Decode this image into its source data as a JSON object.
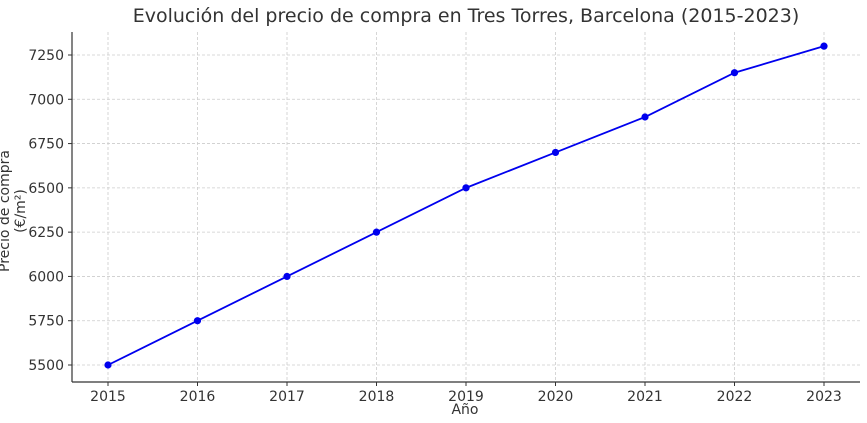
{
  "chart_data": {
    "type": "line",
    "title": "Evolución del precio de compra en Tres Torres, Barcelona (2015-2023)",
    "xlabel": "Año",
    "ylabel": "Precio de compra (€/m²)",
    "x": [
      2015,
      2016,
      2017,
      2018,
      2019,
      2020,
      2021,
      2022,
      2023
    ],
    "series": [
      {
        "name": "Precio de compra",
        "values": [
          5500,
          5750,
          6000,
          6250,
          6500,
          6700,
          6900,
          7150,
          7300
        ],
        "color": "#0000ee",
        "marker": "circle"
      }
    ],
    "yticks": [
      5500,
      5750,
      6000,
      6250,
      6500,
      6750,
      7000,
      7250
    ],
    "xticks": [
      2015,
      2016,
      2017,
      2018,
      2019,
      2020,
      2021,
      2022,
      2023
    ],
    "ylim": [
      5410,
      7390
    ],
    "grid": true,
    "legend": null
  }
}
